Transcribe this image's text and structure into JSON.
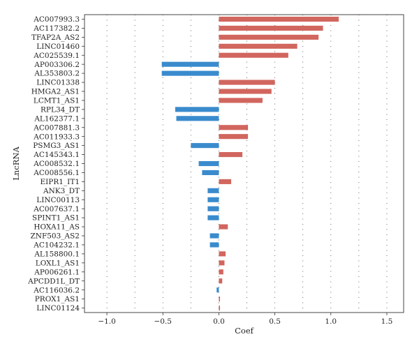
{
  "chart_data": {
    "type": "bar",
    "orientation": "horizontal",
    "xlabel": "Coef",
    "ylabel": "LncRNA",
    "xlim": [
      -1.2,
      1.65
    ],
    "xticks": [
      -1.0,
      -0.5,
      0.0,
      0.5,
      1.0,
      1.5
    ],
    "xtick_labels": [
      "−1.0",
      "−0.5",
      "0.0",
      "0.5",
      "1.0",
      "1.5"
    ],
    "grid": true,
    "colors": {
      "positive": "#d1665e",
      "negative": "#3a8bcd"
    },
    "categories": [
      "AC007993.3",
      "AC117382.2",
      "TFAP2A_AS2",
      "LINC01460",
      "AC025539.1",
      "AP003306.2",
      "AL353803.2",
      "LINC01338",
      "HMGA2_AS1",
      "LCMT1_AS1",
      "RPL34_DT",
      "AL162377.1",
      "AC007881.3",
      "AC011933.3",
      "PSMG3_AS1",
      "AC145343.1",
      "AC008532.1",
      "AC008556.1",
      "EIPR1_IT1",
      "ANK3_DT",
      "LINC00113",
      "AC007637.1",
      "SPINT1_AS1",
      "HOXA11_AS",
      "ZNF503_AS2",
      "AC104232.1",
      "AL158800.1",
      "LOXL1_AS1",
      "AP006261.1",
      "APCDD1L_DT",
      "AC116036.2",
      "PROX1_AS1",
      "LINC01124"
    ],
    "values": [
      1.07,
      0.93,
      0.89,
      0.7,
      0.62,
      -0.51,
      -0.51,
      0.5,
      0.47,
      0.39,
      -0.39,
      -0.38,
      0.26,
      0.26,
      -0.25,
      0.21,
      -0.18,
      -0.15,
      0.11,
      -0.1,
      -0.1,
      -0.1,
      -0.1,
      0.08,
      -0.08,
      -0.08,
      0.06,
      0.05,
      0.04,
      0.03,
      -0.02,
      0.01,
      0.01
    ]
  }
}
